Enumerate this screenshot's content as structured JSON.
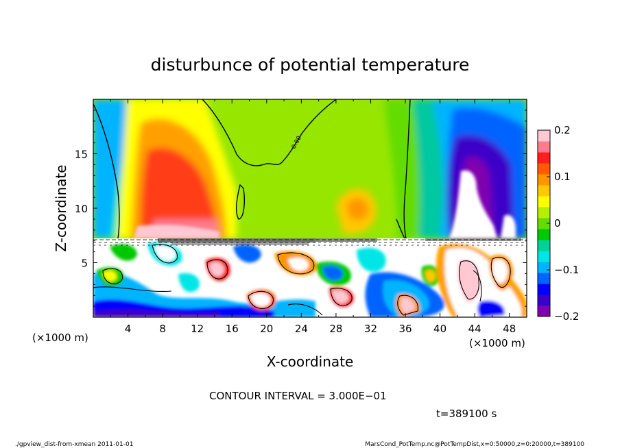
{
  "chart_data": {
    "type": "heatmap",
    "title": "disturbunce of potential temperature",
    "xlabel": "X-coordinate",
    "ylabel": "Z-coordinate",
    "x_unit_left": "(×1000 m)",
    "x_unit_right": "(×1000 m)",
    "xlim": [
      0,
      50
    ],
    "ylim": [
      0,
      20
    ],
    "xticks": [
      "4",
      "8",
      "12",
      "16",
      "20",
      "24",
      "28",
      "32",
      "36",
      "40",
      "44",
      "48"
    ],
    "yticks": [
      "5",
      "10",
      "15"
    ],
    "colorbar": {
      "range": [
        -0.2,
        0.2
      ],
      "tick_labels": [
        "0.2",
        "0.1",
        "0",
        "−0.1",
        "−0.2"
      ],
      "colors": [
        "#8000b0",
        "#3c00c8",
        "#0000ff",
        "#0064ff",
        "#00b4ff",
        "#00e6e6",
        "#00d296",
        "#00c800",
        "#64dc00",
        "#b4f000",
        "#ffff00",
        "#ffc800",
        "#ff9600",
        "#ff5a00",
        "#ff1e1e",
        "#ff7a8c",
        "#ffc8d2"
      ]
    },
    "contour_label": "0.00",
    "contour_interval_text": "CONTOUR INTERVAL = 3.000E−01",
    "time_text": "t=389100 s"
  },
  "footer": {
    "left": "./gpview_dist-from-xmean  2011-01-01",
    "right": "MarsCond_PotTemp.nc@PotTempDist,x=0:50000,z=0:20000,t=389100"
  }
}
